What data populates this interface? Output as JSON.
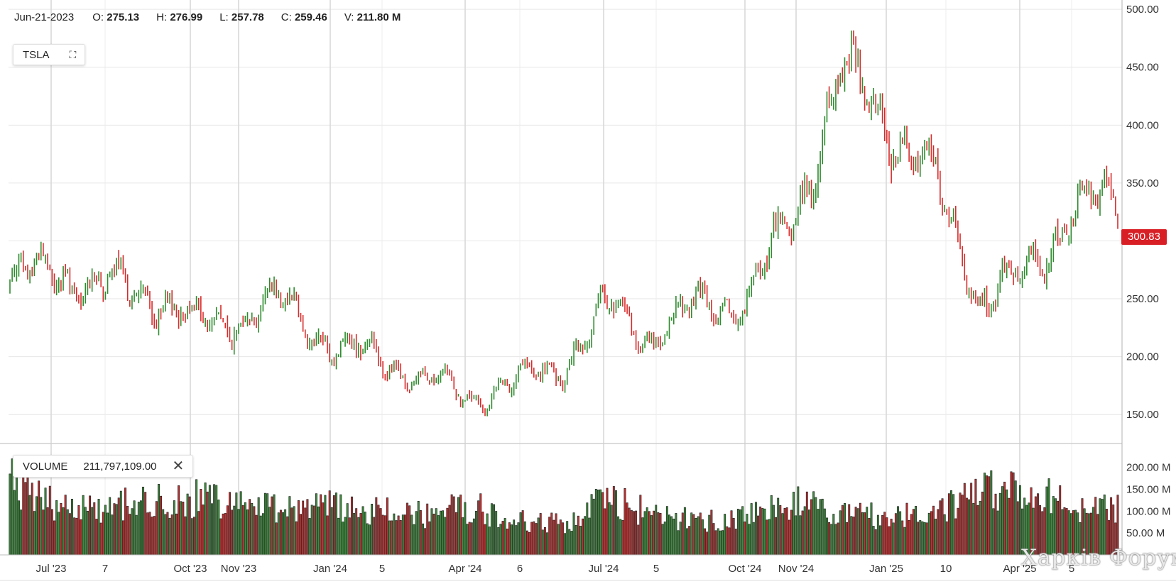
{
  "ohlc_bar": {
    "date": "Jun-21-2023",
    "open_label": "O:",
    "open": "275.13",
    "high_label": "H:",
    "high": "276.99",
    "low_label": "L:",
    "low": "257.78",
    "close_label": "C:",
    "close": "259.46",
    "volume_label": "V:",
    "volume": "211.80 M"
  },
  "ticker_panel": {
    "symbol": "TSLA",
    "expand_icon": "expand-icon"
  },
  "volume_panel": {
    "label": "VOLUME",
    "value": "211,797,109.00",
    "close_icon": "close-icon"
  },
  "last_price_tag": "300.83",
  "watermark": "Харків Форум",
  "colors": {
    "up": "#2e8b2e",
    "down": "#d62b2b",
    "last_price": "#d91f26",
    "grid": "#e6e6e6"
  },
  "chart_data": [
    {
      "type": "candlestick",
      "title": "TSLA",
      "x_tick_labels": [
        "Jul '23",
        "7",
        "Oct '23",
        "Nov '23",
        "Jan '24",
        "5",
        "Apr '24",
        "6",
        "Jul '24",
        "5",
        "Oct '24",
        "Nov '24",
        "Jan '25",
        "10",
        "Apr '25",
        "5"
      ],
      "y_tick_labels": [
        "500.00",
        "450.00",
        "400.00",
        "350.00",
        "300.00",
        "250.00",
        "200.00",
        "150.00"
      ],
      "ylim": [
        125,
        505
      ],
      "grid": true,
      "series": [
        {
          "name": "TSLA",
          "x": [
            "2023-06",
            "2023-07",
            "2023-08",
            "2023-09",
            "2023-10",
            "2023-11",
            "2023-12",
            "2024-01",
            "2024-02",
            "2024-03",
            "2024-04",
            "2024-05",
            "2024-06",
            "2024-07",
            "2024-08",
            "2024-09",
            "2024-10",
            "2024-11",
            "2024-12",
            "2025-01",
            "2025-02",
            "2025-03",
            "2025-04",
            "2025-05",
            "2025-06"
          ],
          "close": [
            262,
            276,
            258,
            257,
            227,
            236,
            248,
            207,
            200,
            178,
            165,
            177,
            193,
            242,
            217,
            245,
            248,
            325,
            440,
            408,
            352,
            250,
            270,
            330,
            330
          ]
        }
      ]
    },
    {
      "type": "bar",
      "title": "VOLUME",
      "y_tick_labels": [
        "200.00 M",
        "150.00 M",
        "100.00 M",
        "50.00 M"
      ],
      "ylim": [
        0,
        230
      ],
      "unit": "M",
      "series": [
        {
          "name": "VOLUME",
          "x": [
            "2023-06",
            "2023-07",
            "2023-08",
            "2023-09",
            "2023-10",
            "2023-11",
            "2023-12",
            "2024-01",
            "2024-02",
            "2024-03",
            "2024-04",
            "2024-05",
            "2024-06",
            "2024-07",
            "2024-08",
            "2024-09",
            "2024-10",
            "2024-11",
            "2024-12",
            "2025-01",
            "2025-02",
            "2025-03",
            "2025-04",
            "2025-05",
            "2025-06"
          ],
          "values": [
            165,
            118,
            112,
            120,
            128,
            122,
            110,
            112,
            98,
            92,
            110,
            78,
            72,
            130,
            88,
            78,
            92,
            125,
            95,
            85,
            92,
            140,
            150,
            110,
            105
          ]
        }
      ]
    }
  ]
}
